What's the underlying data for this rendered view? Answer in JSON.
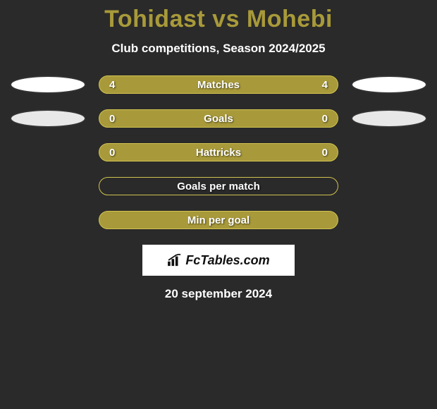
{
  "title": "Tohidast vs Mohebi",
  "subtitle": "Club competitions, Season 2024/2025",
  "rows": [
    {
      "label": "Matches",
      "left": "4",
      "right": "4",
      "filled": true,
      "show_ellipse": true,
      "ellipse_bg_left": "#ffffff",
      "ellipse_bg_right": "#ffffff"
    },
    {
      "label": "Goals",
      "left": "0",
      "right": "0",
      "filled": true,
      "show_ellipse": true,
      "ellipse_bg_left": "#e8e8e8",
      "ellipse_bg_right": "#e8e8e8"
    },
    {
      "label": "Hattricks",
      "left": "0",
      "right": "0",
      "filled": true,
      "show_ellipse": false
    },
    {
      "label": "Goals per match",
      "left": "",
      "right": "",
      "filled": false,
      "show_ellipse": false
    },
    {
      "label": "Min per goal",
      "left": "",
      "right": "",
      "filled": true,
      "show_ellipse": false
    }
  ],
  "logo": "FcTables.com",
  "date": "20 september 2024",
  "colors": {
    "background": "#2a2a2a",
    "accent": "#a89a3a",
    "border": "#d0c250",
    "text": "#ffffff"
  }
}
